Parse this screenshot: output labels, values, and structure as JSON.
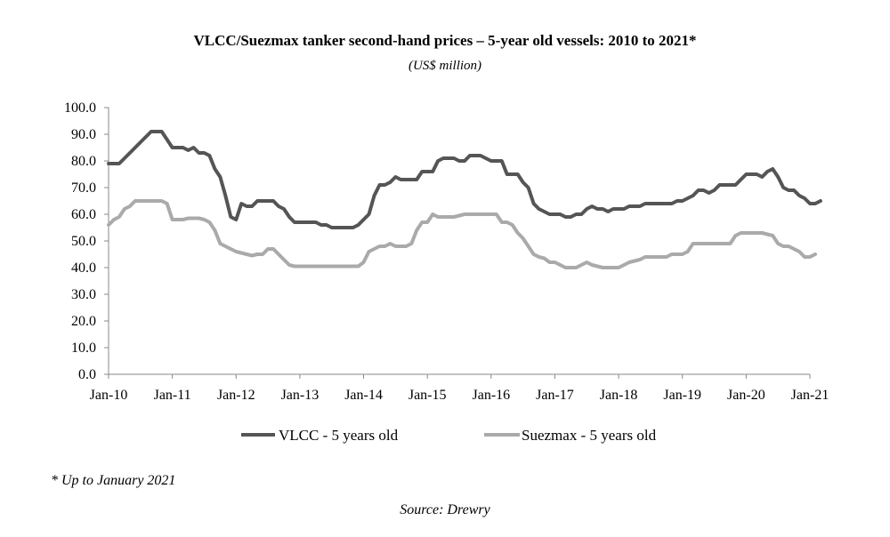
{
  "chart_data": {
    "type": "line",
    "title": "VLCC/Suezmax tanker second-hand prices – 5-year old vessels: 2010 to 2021*",
    "subtitle": "(US$ million)",
    "xlabel": "",
    "ylabel": "",
    "ylim": [
      0,
      100
    ],
    "yticks": [
      "0.0",
      "10.0",
      "20.0",
      "30.0",
      "40.0",
      "50.0",
      "60.0",
      "70.0",
      "80.0",
      "90.0",
      "100.0"
    ],
    "xticks": [
      "Jan-10",
      "Jan-11",
      "Jan-12",
      "Jan-13",
      "Jan-14",
      "Jan-15",
      "Jan-16",
      "Jan-17",
      "Jan-18",
      "Jan-19",
      "Jan-20",
      "Jan-21"
    ],
    "xrange_months": [
      0,
      132
    ],
    "legend_position": "bottom",
    "series": [
      {
        "name": "VLCC - 5 years old",
        "color": "#555555",
        "points": [
          [
            0,
            79
          ],
          [
            2,
            79
          ],
          [
            4,
            83
          ],
          [
            6,
            87
          ],
          [
            8,
            91
          ],
          [
            10,
            91
          ],
          [
            11,
            88
          ],
          [
            12,
            85
          ],
          [
            14,
            85
          ],
          [
            15,
            84
          ],
          [
            16,
            85
          ],
          [
            17,
            83
          ],
          [
            18,
            83
          ],
          [
            19,
            82
          ],
          [
            20,
            77
          ],
          [
            21,
            74
          ],
          [
            22,
            67
          ],
          [
            23,
            59
          ],
          [
            24,
            58
          ],
          [
            25,
            64
          ],
          [
            26,
            63
          ],
          [
            27,
            63
          ],
          [
            28,
            65
          ],
          [
            30,
            65
          ],
          [
            31,
            65
          ],
          [
            32,
            63
          ],
          [
            33,
            62
          ],
          [
            34,
            59
          ],
          [
            35,
            57
          ],
          [
            37,
            57
          ],
          [
            39,
            57
          ],
          [
            40,
            56
          ],
          [
            41,
            56
          ],
          [
            42,
            55
          ],
          [
            45,
            55
          ],
          [
            46,
            55
          ],
          [
            47,
            56
          ],
          [
            48,
            58
          ],
          [
            49,
            60
          ],
          [
            50,
            67
          ],
          [
            51,
            71
          ],
          [
            52,
            71
          ],
          [
            53,
            72
          ],
          [
            54,
            74
          ],
          [
            55,
            73
          ],
          [
            57,
            73
          ],
          [
            58,
            73
          ],
          [
            59,
            76
          ],
          [
            61,
            76
          ],
          [
            62,
            80
          ],
          [
            63,
            81
          ],
          [
            65,
            81
          ],
          [
            66,
            80
          ],
          [
            67,
            80
          ],
          [
            68,
            82
          ],
          [
            70,
            82
          ],
          [
            71,
            81
          ],
          [
            72,
            80
          ],
          [
            74,
            80
          ],
          [
            75,
            75
          ],
          [
            77,
            75
          ],
          [
            78,
            72
          ],
          [
            79,
            70
          ],
          [
            80,
            64
          ],
          [
            81,
            62
          ],
          [
            82,
            61
          ],
          [
            83,
            60
          ],
          [
            85,
            60
          ],
          [
            86,
            59
          ],
          [
            87,
            59
          ],
          [
            88,
            60
          ],
          [
            89,
            60
          ],
          [
            90,
            62
          ],
          [
            91,
            63
          ],
          [
            92,
            62
          ],
          [
            93,
            62
          ],
          [
            94,
            61
          ],
          [
            95,
            62
          ],
          [
            97,
            62
          ],
          [
            98,
            63
          ],
          [
            100,
            63
          ],
          [
            101,
            64
          ],
          [
            106,
            64
          ],
          [
            107,
            65
          ],
          [
            108,
            65
          ],
          [
            109,
            66
          ],
          [
            110,
            67
          ],
          [
            111,
            69
          ],
          [
            112,
            69
          ],
          [
            113,
            68
          ],
          [
            114,
            69
          ],
          [
            115,
            71
          ],
          [
            118,
            71
          ],
          [
            119,
            73
          ],
          [
            120,
            75
          ],
          [
            121,
            75
          ],
          [
            122,
            75
          ],
          [
            123,
            74
          ],
          [
            124,
            76
          ],
          [
            125,
            77
          ],
          [
            126,
            74
          ],
          [
            127,
            70
          ],
          [
            128,
            69
          ],
          [
            129,
            69
          ],
          [
            130,
            67
          ],
          [
            131,
            66
          ],
          [
            132,
            64
          ],
          [
            133,
            64
          ],
          [
            134,
            65
          ]
        ]
      },
      {
        "name": "Suezmax - 5 years old",
        "color": "#aaaaaa",
        "points": [
          [
            0,
            56
          ],
          [
            1,
            58
          ],
          [
            2,
            59
          ],
          [
            3,
            62
          ],
          [
            4,
            63
          ],
          [
            5,
            65
          ],
          [
            9,
            65
          ],
          [
            10,
            65
          ],
          [
            11,
            64
          ],
          [
            12,
            58
          ],
          [
            14,
            58
          ],
          [
            15,
            58.5
          ],
          [
            17,
            58.5
          ],
          [
            18,
            58
          ],
          [
            19,
            57
          ],
          [
            20,
            54
          ],
          [
            21,
            49
          ],
          [
            22,
            48
          ],
          [
            23,
            47
          ],
          [
            24,
            46
          ],
          [
            25,
            45.5
          ],
          [
            26,
            45
          ],
          [
            27,
            44.5
          ],
          [
            28,
            45
          ],
          [
            29,
            45
          ],
          [
            30,
            47
          ],
          [
            31,
            47
          ],
          [
            32,
            45
          ],
          [
            33,
            43
          ],
          [
            34,
            41
          ],
          [
            35,
            40.5
          ],
          [
            37,
            40.5
          ],
          [
            45,
            40.5
          ],
          [
            46,
            40.5
          ],
          [
            47,
            40.5
          ],
          [
            48,
            42
          ],
          [
            49,
            46
          ],
          [
            50,
            47
          ],
          [
            51,
            48
          ],
          [
            52,
            48
          ],
          [
            53,
            49
          ],
          [
            54,
            48
          ],
          [
            56,
            48
          ],
          [
            57,
            49
          ],
          [
            58,
            54
          ],
          [
            59,
            57
          ],
          [
            60,
            57
          ],
          [
            61,
            60
          ],
          [
            62,
            59
          ],
          [
            65,
            59
          ],
          [
            66,
            59.5
          ],
          [
            67,
            60
          ],
          [
            73,
            60
          ],
          [
            74,
            57
          ],
          [
            75,
            57
          ],
          [
            76,
            56
          ],
          [
            77,
            53
          ],
          [
            78,
            51
          ],
          [
            79,
            48
          ],
          [
            80,
            45
          ],
          [
            81,
            44
          ],
          [
            82,
            43.5
          ],
          [
            83,
            42
          ],
          [
            84,
            42
          ],
          [
            85,
            41
          ],
          [
            86,
            40
          ],
          [
            87,
            40
          ],
          [
            88,
            40
          ],
          [
            89,
            41
          ],
          [
            90,
            42
          ],
          [
            91,
            41
          ],
          [
            92,
            40.5
          ],
          [
            93,
            40
          ],
          [
            96,
            40
          ],
          [
            97,
            41
          ],
          [
            98,
            42
          ],
          [
            99,
            42.5
          ],
          [
            100,
            43
          ],
          [
            101,
            44
          ],
          [
            105,
            44
          ],
          [
            106,
            45
          ],
          [
            108,
            45
          ],
          [
            109,
            46
          ],
          [
            110,
            49
          ],
          [
            111,
            49
          ],
          [
            117,
            49
          ],
          [
            118,
            52
          ],
          [
            119,
            53
          ],
          [
            122,
            53
          ],
          [
            123,
            53
          ],
          [
            124,
            52.5
          ],
          [
            125,
            52
          ],
          [
            126,
            49
          ],
          [
            127,
            48
          ],
          [
            128,
            48
          ],
          [
            129,
            47
          ],
          [
            130,
            46
          ],
          [
            131,
            44
          ],
          [
            132,
            44
          ],
          [
            133,
            45
          ]
        ]
      }
    ]
  },
  "footnote": "* Up to January 2021",
  "source": "Source: Drewry"
}
